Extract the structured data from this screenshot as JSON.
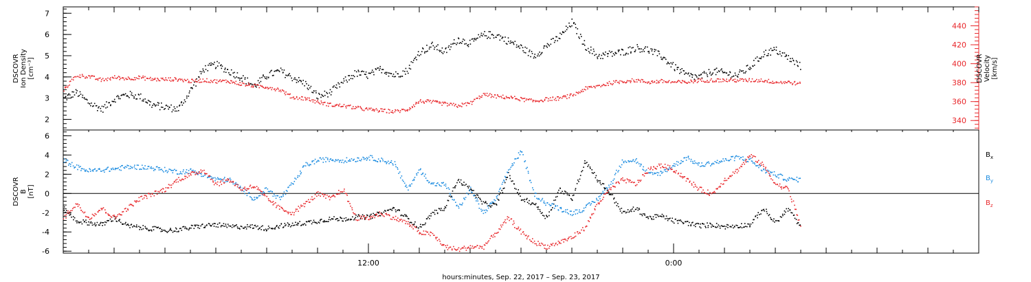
{
  "chart_data": [
    {
      "panel": "top",
      "type": "scatter",
      "left_axis": {
        "label_lines": [
          "DSCOVR",
          "Ion Density",
          "[cm⁻³]"
        ],
        "ylim": [
          1.5,
          7.3
        ],
        "major_ticks": [
          2,
          3,
          4,
          5,
          6,
          7
        ],
        "tick_labels": [
          "2",
          "3",
          "4",
          "5",
          "6",
          "7"
        ]
      },
      "right_axis": {
        "label_lines": [
          "DSCOVR",
          "Velocity",
          "[km/s]"
        ],
        "ylim": [
          330,
          460
        ],
        "major_ticks": [
          340,
          360,
          380,
          400,
          420,
          440
        ],
        "tick_labels": [
          "340",
          "360",
          "380",
          "400",
          "420",
          "440"
        ],
        "color": "#e8262a"
      },
      "series": [
        {
          "color": "#000000",
          "axis": "left",
          "hours": [
            0,
            0.5,
            1,
            1.5,
            2,
            2.5,
            3,
            3.5,
            4,
            4.5,
            5,
            5.5,
            6,
            6.5,
            7,
            7.5,
            8,
            8.5,
            9,
            9.5,
            10,
            10.5,
            11,
            11.5,
            12,
            12.5,
            13,
            13.5,
            14,
            14.5,
            15,
            15.5,
            16,
            16.5,
            17,
            17.5,
            18,
            18.5,
            19,
            19.5,
            20,
            20.5,
            21,
            21.5,
            22,
            22.5,
            23,
            23.5,
            24,
            24.5,
            25,
            25.5,
            26,
            26.5,
            27,
            27.5,
            28,
            28.5,
            29
          ],
          "values": [
            3.0,
            3.3,
            2.8,
            2.5,
            3.0,
            3.2,
            3.1,
            2.7,
            2.6,
            2.5,
            3.4,
            4.4,
            4.6,
            4.3,
            4.0,
            3.6,
            4.1,
            4.3,
            4.0,
            3.7,
            3.1,
            3.3,
            3.8,
            4.2,
            4.1,
            4.4,
            4.1,
            4.3,
            5.2,
            5.5,
            5.2,
            5.8,
            5.6,
            6.0,
            6.0,
            5.7,
            5.4,
            5.0,
            5.5,
            5.9,
            6.6,
            5.5,
            5.0,
            5.1,
            5.2,
            5.4,
            5.3,
            5.0,
            4.5,
            4.1,
            4.0,
            4.3,
            4.2,
            4.1,
            4.5,
            5.1,
            5.3,
            4.9,
            4.5
          ]
        },
        {
          "color": "#e8262a",
          "axis": "right",
          "hours": [
            0,
            0.5,
            1,
            1.5,
            2,
            2.5,
            3,
            3.5,
            4,
            4.5,
            5,
            5.5,
            6,
            6.5,
            7,
            7.5,
            8,
            8.5,
            9,
            9.5,
            10,
            10.5,
            11,
            11.5,
            12,
            12.5,
            13,
            13.5,
            14,
            14.5,
            15,
            15.5,
            16,
            16.5,
            17,
            17.5,
            18,
            18.5,
            19,
            19.5,
            20,
            20.5,
            21,
            21.5,
            22,
            22.5,
            23,
            23.5,
            24,
            24.5,
            25,
            25.5,
            26,
            26.5,
            27,
            27.5,
            28,
            28.5,
            29
          ],
          "values": [
            373,
            388,
            387,
            383,
            386,
            385,
            386,
            384,
            384,
            384,
            382,
            383,
            382,
            382,
            379,
            377,
            376,
            373,
            365,
            364,
            360,
            357,
            356,
            354,
            352,
            351,
            350,
            352,
            361,
            360,
            358,
            356,
            359,
            368,
            366,
            365,
            363,
            361,
            363,
            364,
            367,
            374,
            377,
            380,
            382,
            383,
            381,
            382,
            381,
            381,
            383,
            383,
            383,
            383,
            383,
            383,
            381,
            381,
            379
          ]
        }
      ]
    },
    {
      "panel": "bottom",
      "type": "scatter",
      "left_axis": {
        "label_lines": [
          "DSCOVR",
          "B",
          "[nT]"
        ],
        "ylim": [
          -6.2,
          6.6
        ],
        "major_ticks": [
          -6,
          -4,
          -2,
          0,
          2,
          4,
          6
        ],
        "tick_labels": [
          "-6",
          "-4",
          "-2",
          "0",
          "2",
          "4",
          "6"
        ]
      },
      "zero_line": true,
      "legend": [
        {
          "label": "B",
          "sub": "x",
          "color": "#000000"
        },
        {
          "label": "B",
          "sub": "y",
          "color": "#1a8be0"
        },
        {
          "label": "B",
          "sub": "z",
          "color": "#e8262a"
        }
      ],
      "series": [
        {
          "name": "Bx",
          "color": "#000000",
          "hours": [
            0,
            0.5,
            1,
            1.5,
            2,
            2.5,
            3,
            3.5,
            4,
            4.5,
            5,
            5.5,
            6,
            6.5,
            7,
            7.5,
            8,
            8.5,
            9,
            9.5,
            10,
            10.5,
            11,
            11.5,
            12,
            12.5,
            13,
            13.5,
            14,
            14.5,
            15,
            15.5,
            16,
            16.5,
            17,
            17.5,
            18,
            18.5,
            19,
            19.5,
            20,
            20.5,
            21,
            21.5,
            22,
            22.5,
            23,
            23.5,
            24,
            24.5,
            25,
            25.5,
            26,
            26.5,
            27,
            27.5,
            28,
            28.5,
            29
          ],
          "values": [
            -1.5,
            -2.8,
            -3.0,
            -3.2,
            -2.5,
            -3.3,
            -3.5,
            -3.6,
            -3.8,
            -3.7,
            -3.5,
            -3.3,
            -3.2,
            -3.4,
            -3.4,
            -3.4,
            -3.6,
            -3.3,
            -3.2,
            -3.0,
            -2.8,
            -2.6,
            -2.6,
            -2.4,
            -2.4,
            -2.0,
            -1.5,
            -2.5,
            -3.5,
            -2.0,
            -1.5,
            1.5,
            0.5,
            -1.0,
            -1.2,
            2.0,
            -0.5,
            -1.0,
            -2.5,
            0.5,
            -0.5,
            3.5,
            1.5,
            0.0,
            -2.0,
            -1.5,
            -2.5,
            -2.3,
            -2.8,
            -3.0,
            -3.3,
            -3.2,
            -3.4,
            -3.3,
            -3.2,
            -1.5,
            -3.0,
            -1.5,
            -3.6
          ]
        },
        {
          "name": "By",
          "color": "#1a8be0",
          "hours": [
            0,
            0.5,
            1,
            1.5,
            2,
            2.5,
            3,
            3.5,
            4,
            4.5,
            5,
            5.5,
            6,
            6.5,
            7,
            7.5,
            8,
            8.5,
            9,
            9.5,
            10,
            10.5,
            11,
            11.5,
            12,
            12.5,
            13,
            13.5,
            14,
            14.5,
            15,
            15.5,
            16,
            16.5,
            17,
            17.5,
            18,
            18.5,
            19,
            19.5,
            20,
            20.5,
            21,
            21.5,
            22,
            22.5,
            23,
            23.5,
            24,
            24.5,
            25,
            25.5,
            26,
            26.5,
            27,
            27.5,
            28,
            28.5,
            29
          ],
          "values": [
            3.5,
            2.8,
            2.4,
            2.5,
            2.6,
            2.8,
            2.8,
            2.7,
            2.5,
            2.3,
            2.4,
            2.0,
            1.5,
            1.5,
            0.5,
            -0.5,
            0.5,
            -0.5,
            1.0,
            3.0,
            3.5,
            3.6,
            3.5,
            3.6,
            3.8,
            3.5,
            3.2,
            0.5,
            2.5,
            1.0,
            1.0,
            -1.5,
            0.5,
            -2.0,
            -0.5,
            2.5,
            4.5,
            0.0,
            -1.0,
            -1.5,
            -2.0,
            -1.5,
            -0.5,
            1.0,
            3.5,
            3.5,
            2.0,
            2.2,
            3.0,
            3.8,
            3.0,
            3.2,
            3.5,
            3.8,
            3.5,
            2.5,
            2.0,
            1.5,
            1.5
          ]
        },
        {
          "name": "Bz",
          "color": "#e8262a",
          "hours": [
            0,
            0.5,
            1,
            1.5,
            2,
            2.5,
            3,
            3.5,
            4,
            4.5,
            5,
            5.5,
            6,
            6.5,
            7,
            7.5,
            8,
            8.5,
            9,
            9.5,
            10,
            10.5,
            11,
            11.5,
            12,
            12.5,
            13,
            13.5,
            14,
            14.5,
            15,
            15.5,
            16,
            16.5,
            17,
            17.5,
            18,
            18.5,
            19,
            19.5,
            20,
            20.5,
            21,
            21.5,
            22,
            22.5,
            23,
            23.5,
            24,
            24.5,
            25,
            25.5,
            26,
            26.5,
            27,
            27.5,
            28,
            28.5,
            29
          ],
          "values": [
            -2.5,
            -1.0,
            -2.5,
            -1.5,
            -2.5,
            -1.5,
            -0.5,
            0.0,
            0.5,
            1.5,
            2.0,
            2.5,
            1.0,
            1.5,
            0.5,
            0.8,
            -0.5,
            -1.5,
            -2.0,
            -1.0,
            0.0,
            -0.5,
            0.5,
            -2.5,
            -2.5,
            -2.0,
            -2.5,
            -3.0,
            -4.0,
            -4.2,
            -5.5,
            -5.8,
            -5.5,
            -5.5,
            -4.0,
            -2.5,
            -4.0,
            -5.0,
            -5.5,
            -5.0,
            -4.5,
            -3.5,
            -1.0,
            0.5,
            1.5,
            1.0,
            2.5,
            3.0,
            2.5,
            1.5,
            0.5,
            0.0,
            1.5,
            2.5,
            4.0,
            3.0,
            1.0,
            0.5,
            -3.5
          ]
        }
      ]
    }
  ],
  "x_axis": {
    "title": "hours:minutes, Sep. 22, 2017 – Sep. 23, 2017",
    "hour_range": [
      0,
      36
    ],
    "labeled_ticks": [
      {
        "hour": 12,
        "label": "12:00"
      },
      {
        "hour": 24,
        "label": "0:00"
      }
    ]
  }
}
